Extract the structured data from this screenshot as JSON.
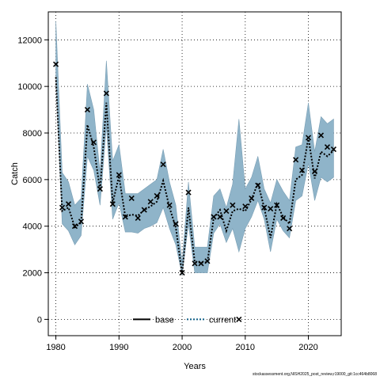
{
  "chart_data": {
    "type": "line",
    "title": "",
    "xlabel": "Years",
    "ylabel": "Catch",
    "xlim": [
      1978.8,
      2025.2
    ],
    "ylim": [
      -700,
      13200
    ],
    "x_ticks": [
      1980,
      1990,
      2000,
      2010,
      2020
    ],
    "y_ticks": [
      0,
      2000,
      4000,
      6000,
      8000,
      10000,
      12000
    ],
    "grid": true,
    "legend_position": "bottom-center",
    "colors": {
      "band": "#8fb4c9",
      "band_edge": "#7a9fb5",
      "current": "#0f5f86",
      "base": "#000000"
    },
    "years": [
      1980,
      1981,
      1982,
      1983,
      1984,
      1985,
      1986,
      1987,
      1988,
      1989,
      1990,
      1991,
      1992,
      1993,
      1994,
      1995,
      1996,
      1997,
      1998,
      1999,
      2000,
      2001,
      2002,
      2003,
      2004,
      2005,
      2006,
      2007,
      2008,
      2009,
      2010,
      2011,
      2012,
      2013,
      2014,
      2015,
      2016,
      2017,
      2018,
      2019,
      2020,
      2021,
      2022,
      2023,
      2024
    ],
    "series": [
      {
        "name": "base",
        "style": "solid-black",
        "points": []
      },
      {
        "name": "current",
        "style": "dotted",
        "lower": [
          10500,
          4100,
          3800,
          3200,
          3600,
          7000,
          6400,
          4900,
          8300,
          4300,
          5000,
          3750,
          3750,
          3700,
          3900,
          4000,
          4150,
          4800,
          3900,
          3200,
          1900,
          4100,
          2000,
          2000,
          2000,
          3700,
          4100,
          3300,
          3900,
          2900,
          3900,
          4400,
          5100,
          4300,
          2900,
          4300,
          3800,
          3500,
          5100,
          5300,
          6700,
          5100,
          6100,
          5900,
          6100
        ],
        "upper": [
          12800,
          6300,
          5900,
          4900,
          5200,
          10100,
          9000,
          6300,
          11100,
          6800,
          7500,
          5400,
          5400,
          5400,
          5600,
          5800,
          6000,
          7300,
          5900,
          4900,
          2400,
          5900,
          3100,
          3100,
          3100,
          5300,
          5600,
          4800,
          5800,
          8600,
          5600,
          6100,
          7000,
          5600,
          5000,
          6000,
          5500,
          5100,
          7400,
          7500,
          9300,
          7200,
          8700,
          8400,
          8600
        ],
        "values": [
          10400,
          4650,
          4800,
          3950,
          4150,
          8350,
          7400,
          5550,
          9300,
          5000,
          6150,
          4400,
          4500,
          4450,
          4700,
          4850,
          5050,
          5950,
          4800,
          3950,
          1950,
          4800,
          2450,
          2450,
          2450,
          4350,
          4700,
          3800,
          4650,
          4750,
          4650,
          5150,
          5850,
          4800,
          3500,
          4950,
          4400,
          4100,
          6000,
          6200,
          7800,
          6050,
          7200,
          7000,
          7250
        ]
      }
    ],
    "observations": [
      {
        "year": 1980,
        "value": 10950
      },
      {
        "year": 1981,
        "value": 4800
      },
      {
        "year": 1982,
        "value": 4950
      },
      {
        "year": 1983,
        "value": 4000
      },
      {
        "year": 1984,
        "value": 4200
      },
      {
        "year": 1985,
        "value": 9000
      },
      {
        "year": 1986,
        "value": 7600
      },
      {
        "year": 1987,
        "value": 5600
      },
      {
        "year": 1988,
        "value": 9700
      },
      {
        "year": 1989,
        "value": 4950
      },
      {
        "year": 1990,
        "value": 6200
      },
      {
        "year": 1991,
        "value": 4400
      },
      {
        "year": 1992,
        "value": 5200
      },
      {
        "year": 1993,
        "value": 4350
      },
      {
        "year": 1994,
        "value": 4700
      },
      {
        "year": 1995,
        "value": 5050
      },
      {
        "year": 1996,
        "value": 5300
      },
      {
        "year": 1997,
        "value": 6650
      },
      {
        "year": 1998,
        "value": 4900
      },
      {
        "year": 1999,
        "value": 4100
      },
      {
        "year": 2000,
        "value": 2000
      },
      {
        "year": 2001,
        "value": 5450
      },
      {
        "year": 2002,
        "value": 2400
      },
      {
        "year": 2003,
        "value": 2400
      },
      {
        "year": 2004,
        "value": 2500
      },
      {
        "year": 2005,
        "value": 4400
      },
      {
        "year": 2006,
        "value": 4400
      },
      {
        "year": 2007,
        "value": 4650
      },
      {
        "year": 2008,
        "value": 4900
      },
      {
        "year": 2009,
        "value": 0
      },
      {
        "year": 2010,
        "value": 4850
      },
      {
        "year": 2011,
        "value": 5200
      },
      {
        "year": 2012,
        "value": 5750
      },
      {
        "year": 2013,
        "value": 4800
      },
      {
        "year": 2014,
        "value": 4750
      },
      {
        "year": 2015,
        "value": 4900
      },
      {
        "year": 2016,
        "value": 4350
      },
      {
        "year": 2017,
        "value": 3900
      },
      {
        "year": 2018,
        "value": 6850
      },
      {
        "year": 2019,
        "value": 6400
      },
      {
        "year": 2020,
        "value": 7800
      },
      {
        "year": 2021,
        "value": 6350
      },
      {
        "year": 2022,
        "value": 7900
      },
      {
        "year": 2023,
        "value": 7400
      },
      {
        "year": 2024,
        "value": 7300
      }
    ]
  },
  "footer": "stockassessment.org,NISH2025_post_review,r19000_git:1cc464b8068"
}
